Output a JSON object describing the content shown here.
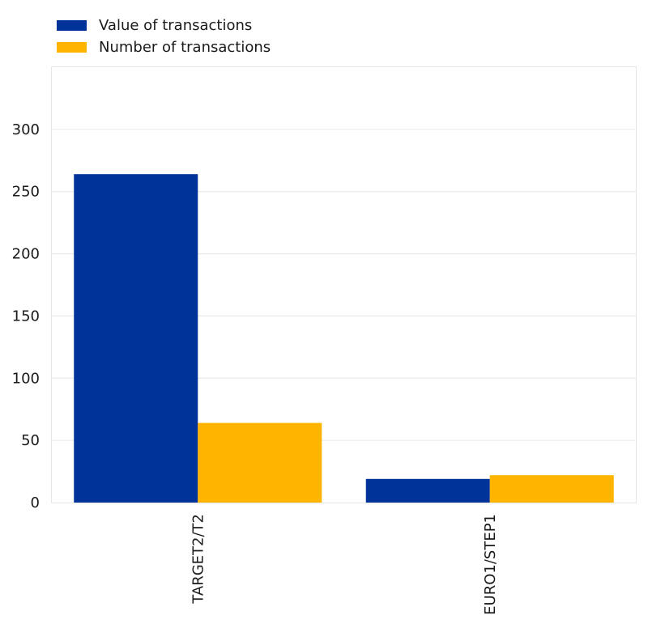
{
  "chart_data": {
    "type": "bar",
    "categories": [
      "TARGET2/T2",
      "EURO1/STEP1"
    ],
    "series": [
      {
        "name": "Value of transactions",
        "color": "#003399",
        "values": [
          264,
          19
        ]
      },
      {
        "name": "Number of transactions",
        "color": "#FFB400",
        "values": [
          64,
          22
        ]
      }
    ],
    "ylim": [
      0,
      350
    ],
    "yticks": [
      0,
      50,
      100,
      150,
      200,
      250,
      300
    ],
    "grid": true,
    "legend": "top-left",
    "title": "",
    "xlabel": "",
    "ylabel": ""
  }
}
